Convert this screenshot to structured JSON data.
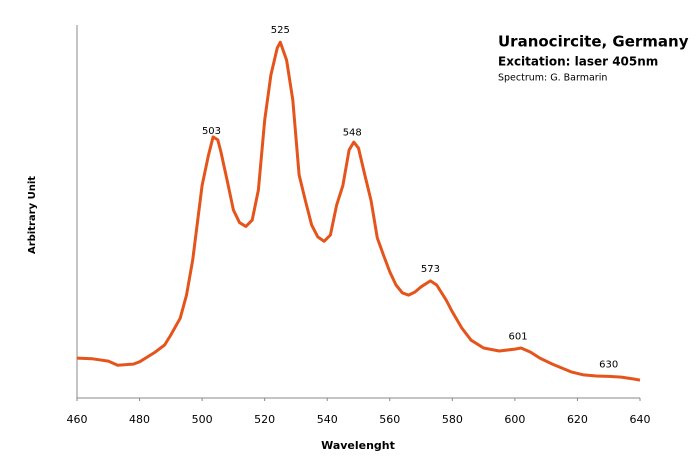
{
  "chart_data": {
    "type": "line",
    "title": "Uranocircite, Germany",
    "subtitle": "Excitation: laser 405nm",
    "credit": "Spectrum: G. Barmarin",
    "xlabel": "Wavelenght",
    "ylabel": "Arbitrary Unit",
    "color": "#e5541b",
    "x": [
      460,
      465,
      470,
      473,
      478,
      480,
      485,
      488,
      490,
      493,
      495,
      497,
      499,
      500,
      502,
      503.5,
      505,
      506,
      508,
      510,
      512,
      514,
      516,
      518,
      520,
      522,
      524,
      525,
      527,
      529,
      531,
      533,
      535,
      537,
      539,
      541,
      543,
      545,
      547,
      548.5,
      550,
      552,
      554,
      556,
      558,
      560,
      562,
      564,
      566,
      568,
      570,
      573,
      575,
      578,
      580,
      583,
      586,
      590,
      595,
      600,
      602,
      605,
      608,
      612,
      618,
      622,
      626,
      630,
      634,
      638,
      640
    ],
    "values": [
      10.7,
      10.5,
      9.9,
      8.8,
      9.1,
      9.7,
      12.3,
      14.2,
      16.9,
      21.4,
      27.6,
      37,
      50.4,
      57,
      65,
      70,
      69.2,
      66,
      58.4,
      50.4,
      47,
      46,
      47.7,
      55.8,
      74.5,
      86.6,
      93.8,
      95.4,
      90.6,
      79.9,
      59.8,
      53,
      46.4,
      43.2,
      42,
      43.7,
      51.7,
      57,
      66.5,
      68.6,
      67,
      59.8,
      53,
      42.9,
      38.3,
      33.8,
      30.3,
      28.2,
      27.6,
      28.4,
      29.8,
      31.4,
      30.3,
      26.3,
      23.1,
      18.8,
      15.5,
      13.4,
      12.6,
      13.1,
      13.4,
      12.3,
      10.7,
      9.1,
      7,
      6.2,
      5.9,
      5.8,
      5.6,
      5.1,
      4.8
    ],
    "peak_labels": [
      503,
      525,
      548,
      573,
      601,
      630
    ],
    "xlim": [
      460,
      640
    ],
    "xticks": [
      460,
      480,
      500,
      520,
      540,
      560,
      580,
      600,
      620,
      640
    ],
    "ylim": [
      0,
      100
    ]
  }
}
